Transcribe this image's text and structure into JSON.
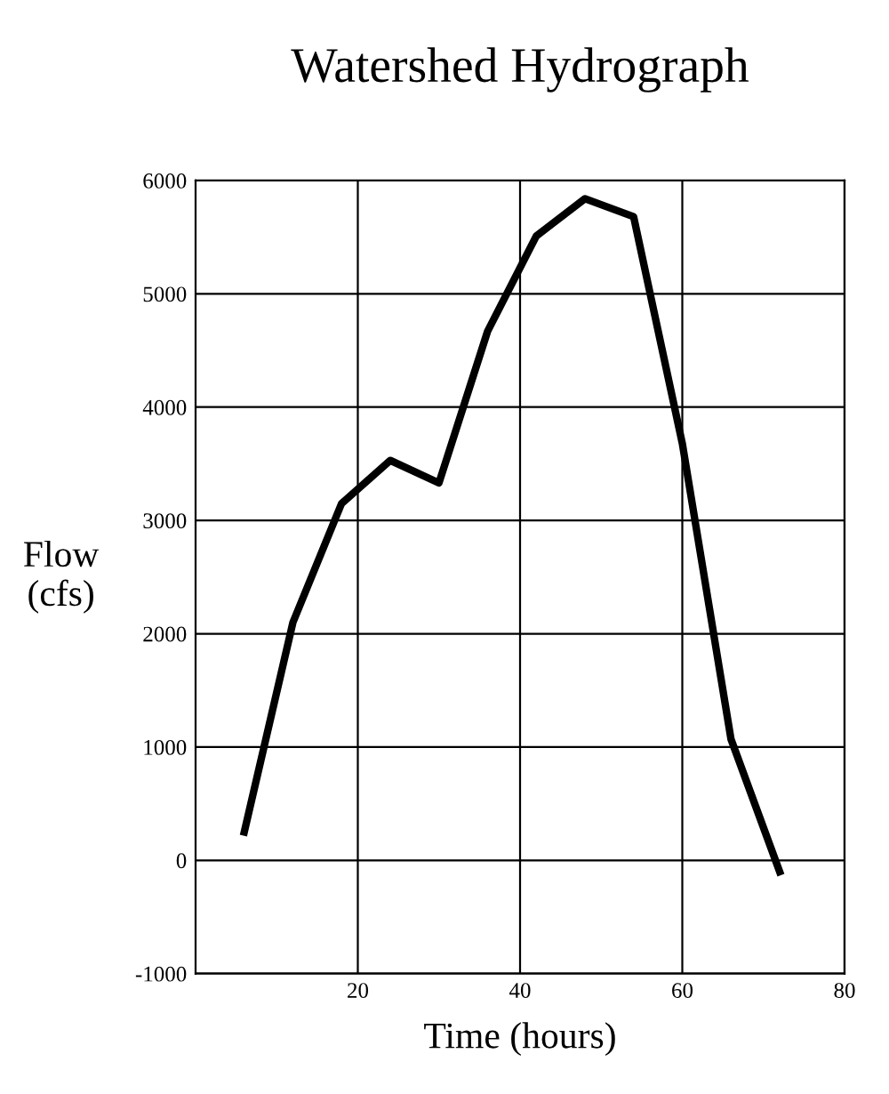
{
  "chart_data": {
    "type": "line",
    "title": "Watershed Hydrograph",
    "xlabel": "Time (hours)",
    "ylabel": "Flow\n(cfs)",
    "x": [
      6,
      12,
      18,
      24,
      30,
      36,
      42,
      48,
      54,
      60,
      66,
      72
    ],
    "series": [
      {
        "color": "#000000",
        "values": [
          250,
          2100,
          3150,
          3530,
          3330,
          4670,
          5510,
          5840,
          5680,
          3680,
          1070,
          -100
        ]
      }
    ],
    "xlim": [
      0,
      80
    ],
    "xticks": [
      20,
      40,
      60,
      80
    ],
    "ylim": [
      -1000,
      6000
    ],
    "yticks": [
      -1000,
      0,
      1000,
      2000,
      3000,
      4000,
      5000,
      6000
    ],
    "grid": true,
    "legend": false,
    "marker": "none",
    "line_style": "solid"
  }
}
